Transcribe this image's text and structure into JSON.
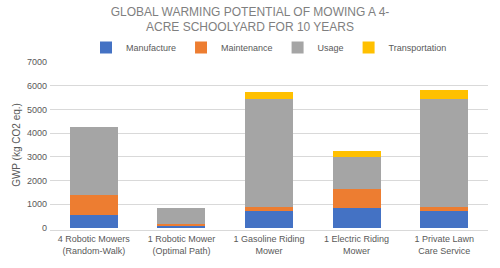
{
  "chart_data": {
    "type": "bar",
    "stacked": true,
    "title": "GLOBAL WARMING POTENTIAL OF MOWING A 4-\nACRE SCHOOLYARD FOR 10 YEARS",
    "y_label": "GWP (kg CO2 eq.)",
    "categories": [
      "4 Robotic Mowers (Random-Walk)",
      "1 Robotic Mower (Optimal Path)",
      "1 Gasoline Riding Mower",
      "1 Electric Riding Mower",
      "1 Private Lawn Care Service"
    ],
    "series": [
      {
        "name": "Manufacture",
        "color": "#4472c4",
        "values": [
          550,
          100,
          700,
          850,
          700
        ]
      },
      {
        "name": "Maintenance",
        "color": "#ed7d31",
        "values": [
          850,
          80,
          200,
          800,
          200
        ]
      },
      {
        "name": "Usage",
        "color": "#a5a5a5",
        "values": [
          2850,
          670,
          4550,
          1350,
          4550
        ]
      },
      {
        "name": "Transportation",
        "color": "#ffc000",
        "values": [
          10,
          5,
          270,
          250,
          350
        ]
      }
    ],
    "ylim": [
      0,
      7000
    ],
    "yticks": [
      0,
      1000,
      2000,
      3000,
      4000,
      5000,
      6000,
      7000
    ],
    "grid": true,
    "legend": "top"
  }
}
